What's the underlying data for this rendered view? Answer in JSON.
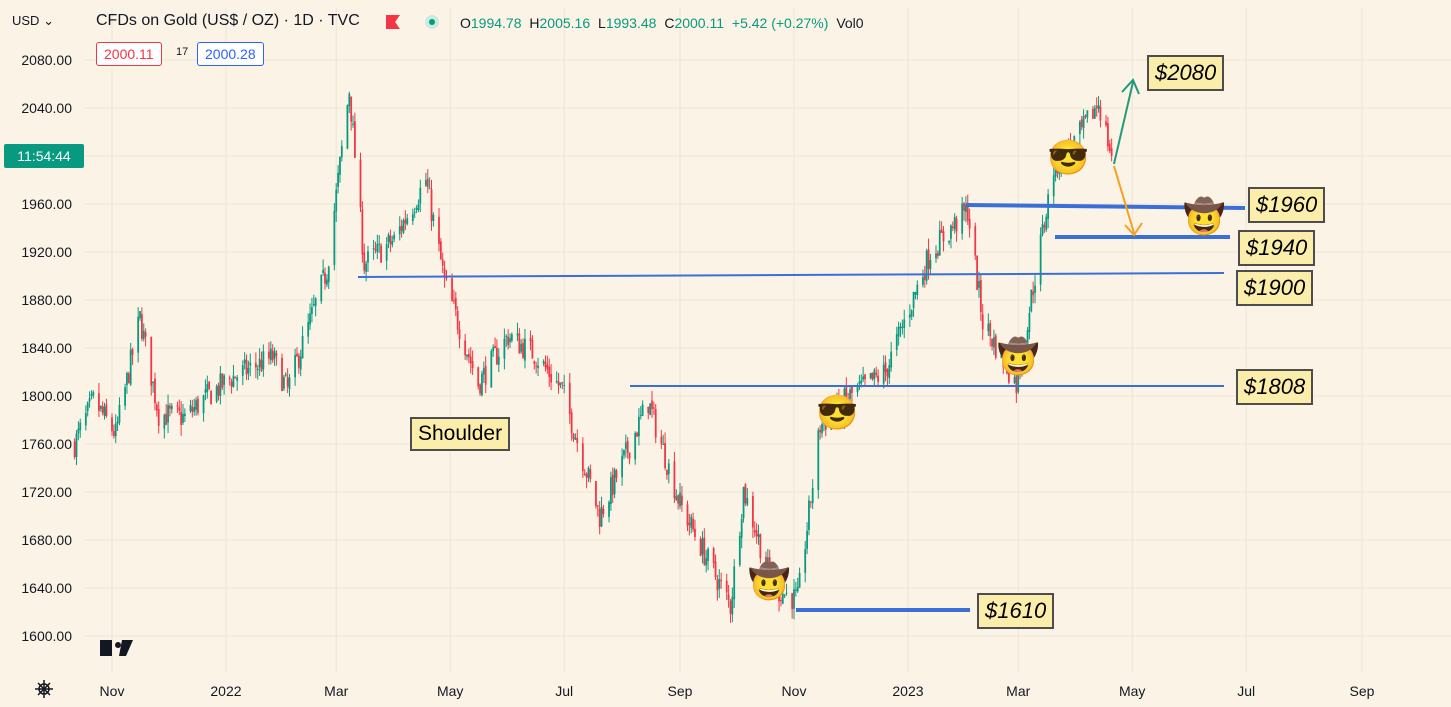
{
  "header": {
    "currency": "USD",
    "title": "CFDs on Gold (US$ / OZ) · 1D · TVC",
    "ohlc": {
      "o_label": "O",
      "o": "1994.78",
      "h_label": "H",
      "h": "2005.16",
      "l_label": "L",
      "l": "1993.48",
      "c_label": "C",
      "c": "2000.11",
      "change": "+5.42 (+0.27%)",
      "vol": "Vol0"
    },
    "bid": "2000.11",
    "spread": "17",
    "ask": "2000.28"
  },
  "countdown": "11:54:44",
  "logo": "TV",
  "colors": {
    "up": "#089981",
    "down": "#f23645",
    "level": "#3b6fd8",
    "bg": "#fbf4e6"
  },
  "chart_data": {
    "type": "candlestick",
    "y_ticks": [
      "1600.00",
      "1640.00",
      "1680.00",
      "1720.00",
      "1760.00",
      "1800.00",
      "1840.00",
      "1880.00",
      "1920.00",
      "1960.00",
      "2000.00",
      "2040.00",
      "2080.00"
    ],
    "ylim": [
      1590,
      2105
    ],
    "x_ticks": [
      {
        "label": "Nov",
        "date": "2021-11-01"
      },
      {
        "label": "2022",
        "date": "2022-01-01"
      },
      {
        "label": "Mar",
        "date": "2022-03-01"
      },
      {
        "label": "May",
        "date": "2022-05-01"
      },
      {
        "label": "Jul",
        "date": "2022-07-01"
      },
      {
        "label": "Sep",
        "date": "2022-09-01"
      },
      {
        "label": "Nov",
        "date": "2022-11-01"
      },
      {
        "label": "2023",
        "date": "2023-01-01"
      },
      {
        "label": "Mar",
        "date": "2023-03-01"
      },
      {
        "label": "May",
        "date": "2023-05-01"
      },
      {
        "label": "Jul",
        "date": "2023-07-01"
      },
      {
        "label": "Sep",
        "date": "2023-09-01"
      }
    ],
    "price_path": [
      [
        "2021-10-12",
        1760
      ],
      [
        "2021-10-22",
        1796
      ],
      [
        "2021-11-03",
        1768
      ],
      [
        "2021-11-16",
        1865
      ],
      [
        "2021-11-26",
        1785
      ],
      [
        "2021-12-10",
        1782
      ],
      [
        "2021-12-22",
        1800
      ],
      [
        "2022-01-04",
        1815
      ],
      [
        "2022-01-26",
        1832
      ],
      [
        "2022-02-03",
        1805
      ],
      [
        "2022-02-24",
        1905
      ],
      [
        "2022-03-08",
        2055
      ],
      [
        "2022-03-16",
        1910
      ],
      [
        "2022-04-01",
        1930
      ],
      [
        "2022-04-18",
        1980
      ],
      [
        "2022-04-28",
        1895
      ],
      [
        "2022-05-16",
        1810
      ],
      [
        "2022-06-01",
        1850
      ],
      [
        "2022-06-15",
        1835
      ],
      [
        "2022-06-30",
        1805
      ],
      [
        "2022-07-20",
        1700
      ],
      [
        "2022-08-15",
        1795
      ],
      [
        "2022-09-01",
        1710
      ],
      [
        "2022-09-28",
        1625
      ],
      [
        "2022-10-05",
        1722
      ],
      [
        "2022-10-21",
        1640
      ],
      [
        "2022-11-03",
        1630
      ],
      [
        "2022-11-15",
        1775
      ],
      [
        "2022-12-01",
        1800
      ],
      [
        "2022-12-20",
        1820
      ],
      [
        "2023-01-13",
        1920
      ],
      [
        "2023-02-02",
        1955
      ],
      [
        "2023-02-10",
        1862
      ],
      [
        "2023-02-28",
        1810
      ],
      [
        "2023-03-20",
        1990
      ],
      [
        "2023-04-04",
        2020
      ],
      [
        "2023-04-13",
        2045
      ],
      [
        "2023-04-20",
        2000
      ]
    ],
    "levels": [
      {
        "label": "$2080",
        "price": 2080
      },
      {
        "label": "$1960",
        "price": 1960
      },
      {
        "label": "$1940",
        "price": 1940
      },
      {
        "label": "$1900",
        "price": 1900
      },
      {
        "label": "$1808",
        "price": 1808
      },
      {
        "label": "$1610",
        "price": 1610
      }
    ],
    "annotations": [
      "Shoulder"
    ]
  }
}
